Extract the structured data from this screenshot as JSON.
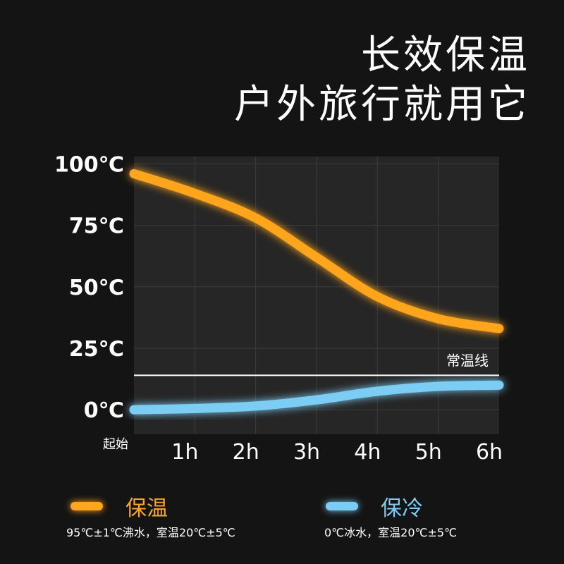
{
  "headline": {
    "line1": "长效保温",
    "line2": "户外旅行就用它"
  },
  "colors": {
    "background": "#141414",
    "plot_background": "#262626",
    "grid": "#3c3c3c",
    "hot": "#ffa51e",
    "cold": "#7ccdf4",
    "room_line": "#ffffff"
  },
  "chart_data": {
    "type": "line",
    "x": [
      0,
      1,
      2,
      3,
      4,
      5,
      6
    ],
    "x_tick_labels": [
      "起始",
      "1h",
      "2h",
      "3h",
      "4h",
      "5h",
      "6h"
    ],
    "y_ticks": [
      0,
      25,
      50,
      75,
      100
    ],
    "y_tick_labels": [
      "0℃",
      "25℃",
      "50℃",
      "75℃",
      "100℃"
    ],
    "xlim": [
      0,
      6
    ],
    "ylim": [
      -10,
      103
    ],
    "grid": true,
    "series": [
      {
        "name": "保温",
        "color": "#ffa51e",
        "values": [
          96,
          88,
          78,
          62,
          46,
          37,
          33
        ]
      },
      {
        "name": "保冷",
        "color": "#7ccdf4",
        "values": [
          0,
          0.5,
          1.5,
          4,
          7.5,
          9.5,
          10
        ]
      }
    ],
    "reference_line": {
      "label": "常温线",
      "value": 14
    }
  },
  "legend": {
    "hot": {
      "title": "保温",
      "note": "95℃±1℃沸水，室温20℃±5℃"
    },
    "cold": {
      "title": "保冷",
      "note": "0℃冰水，室温20℃±5℃"
    }
  }
}
